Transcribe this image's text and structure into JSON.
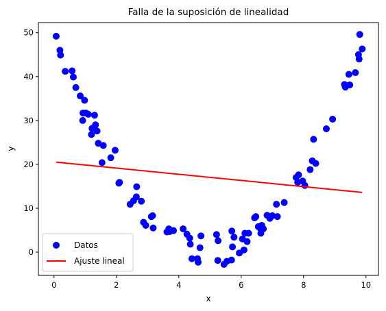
{
  "chart_data": {
    "type": "scatter",
    "title": "Falla de la suposición de linealidad",
    "xlabel": "x",
    "ylabel": "y",
    "xlim": [
      -0.5,
      10.4
    ],
    "ylim": [
      -5.3,
      52.3
    ],
    "xticks": [
      0,
      2,
      4,
      6,
      8,
      10
    ],
    "yticks": [
      0,
      10,
      20,
      30,
      40,
      50
    ],
    "grid": false,
    "legend_position": "lower-left",
    "series": [
      {
        "name": "Datos",
        "kind": "scatter",
        "color": "#0000ff",
        "points": [
          [
            0.07,
            49.2
          ],
          [
            0.19,
            46.0
          ],
          [
            0.21,
            44.9
          ],
          [
            0.36,
            41.2
          ],
          [
            0.58,
            41.3
          ],
          [
            0.62,
            39.9
          ],
          [
            0.7,
            37.5
          ],
          [
            0.84,
            35.6
          ],
          [
            0.92,
            30.0
          ],
          [
            0.93,
            31.7
          ],
          [
            0.98,
            34.6
          ],
          [
            1.02,
            31.7
          ],
          [
            1.1,
            31.4
          ],
          [
            1.2,
            26.8
          ],
          [
            1.22,
            28.2
          ],
          [
            1.3,
            31.2
          ],
          [
            1.33,
            29.0
          ],
          [
            1.38,
            27.6
          ],
          [
            1.42,
            24.8
          ],
          [
            1.54,
            20.4
          ],
          [
            1.58,
            24.3
          ],
          [
            1.82,
            21.5
          ],
          [
            1.96,
            23.2
          ],
          [
            2.08,
            15.7
          ],
          [
            2.1,
            15.9
          ],
          [
            2.44,
            10.9
          ],
          [
            2.55,
            11.7
          ],
          [
            2.64,
            12.6
          ],
          [
            2.65,
            14.9
          ],
          [
            2.8,
            11.6
          ],
          [
            2.87,
            6.8
          ],
          [
            2.94,
            6.1
          ],
          [
            3.12,
            8.1
          ],
          [
            3.16,
            8.3
          ],
          [
            3.18,
            5.5
          ],
          [
            3.62,
            4.6
          ],
          [
            3.68,
            5.3
          ],
          [
            3.71,
            4.7
          ],
          [
            3.83,
            4.9
          ],
          [
            4.14,
            5.3
          ],
          [
            4.26,
            4.1
          ],
          [
            4.35,
            3.2
          ],
          [
            4.37,
            1.8
          ],
          [
            4.42,
            -1.5
          ],
          [
            4.6,
            -1.5
          ],
          [
            4.62,
            -2.3
          ],
          [
            4.68,
            1.0
          ],
          [
            4.71,
            3.7
          ],
          [
            5.21,
            4.0
          ],
          [
            5.26,
            2.6
          ],
          [
            5.25,
            -1.9
          ],
          [
            5.45,
            -2.8
          ],
          [
            5.54,
            -2.1
          ],
          [
            5.69,
            -1.8
          ],
          [
            5.72,
            1.2
          ],
          [
            5.7,
            4.8
          ],
          [
            5.77,
            3.4
          ],
          [
            5.94,
            -0.2
          ],
          [
            6.04,
            3.0
          ],
          [
            6.09,
            0.5
          ],
          [
            6.12,
            4.3
          ],
          [
            6.19,
            2.4
          ],
          [
            6.24,
            4.3
          ],
          [
            6.43,
            7.8
          ],
          [
            6.47,
            8.1
          ],
          [
            6.55,
            5.8
          ],
          [
            6.6,
            5.5
          ],
          [
            6.63,
            4.3
          ],
          [
            6.66,
            6.1
          ],
          [
            6.71,
            5.3
          ],
          [
            6.83,
            8.4
          ],
          [
            6.92,
            7.7
          ],
          [
            7.0,
            8.3
          ],
          [
            7.13,
            10.9
          ],
          [
            7.16,
            8.1
          ],
          [
            7.38,
            11.3
          ],
          [
            7.76,
            17.0
          ],
          [
            7.81,
            15.9
          ],
          [
            7.84,
            17.6
          ],
          [
            7.97,
            16.2
          ],
          [
            8.04,
            15.2
          ],
          [
            8.21,
            18.8
          ],
          [
            8.28,
            20.8
          ],
          [
            8.32,
            25.7
          ],
          [
            8.39,
            20.2
          ],
          [
            8.73,
            28.1
          ],
          [
            8.93,
            30.3
          ],
          [
            9.31,
            38.2
          ],
          [
            9.34,
            37.6
          ],
          [
            9.45,
            40.5
          ],
          [
            9.48,
            38.1
          ],
          [
            9.66,
            40.9
          ],
          [
            9.76,
            45.0
          ],
          [
            9.78,
            44.0
          ],
          [
            9.8,
            49.6
          ],
          [
            9.88,
            46.3
          ]
        ]
      },
      {
        "name": "Ajuste lineal",
        "kind": "line",
        "color": "#ff0000",
        "points": [
          [
            0.07,
            20.5
          ],
          [
            9.88,
            13.6
          ]
        ]
      }
    ]
  }
}
